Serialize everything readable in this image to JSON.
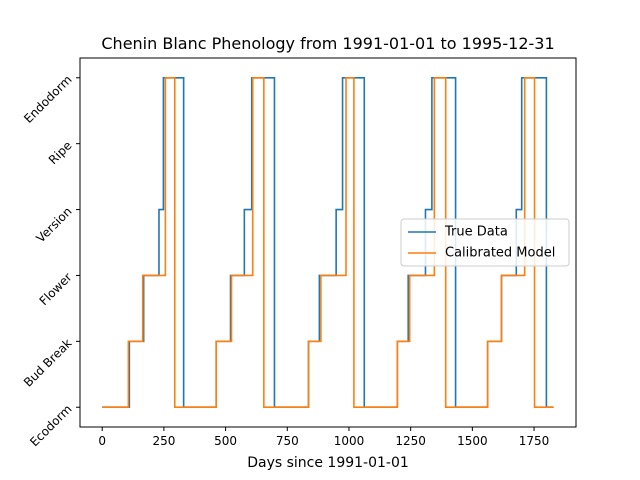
{
  "chart_data": {
    "type": "line",
    "title": "Chenin Blanc Phenology from 1991-01-01 to 1995-12-31",
    "xlabel": "Days since 1991-01-01",
    "ylabel": "",
    "xlim": [
      -90,
      1920
    ],
    "ylim": [
      -0.3,
      5.3
    ],
    "x_ticks": [
      0,
      250,
      500,
      750,
      1000,
      1250,
      1500,
      1750
    ],
    "y_ticks": [
      0,
      1,
      2,
      3,
      4,
      5
    ],
    "y_tick_labels": [
      "Ecodorm",
      "Bud Break",
      "Flower",
      "Version",
      "Ripe",
      "Endodorm"
    ],
    "legend_position": "center-right",
    "grid": false,
    "series": [
      {
        "name": "True Data",
        "color": "#1f77b4",
        "step_points": [
          [
            0,
            0
          ],
          [
            110,
            0
          ],
          [
            110,
            1
          ],
          [
            168,
            1
          ],
          [
            168,
            2
          ],
          [
            230,
            2
          ],
          [
            230,
            3
          ],
          [
            248,
            3
          ],
          [
            248,
            5
          ],
          [
            330,
            5
          ],
          [
            330,
            0
          ],
          [
            462,
            0
          ],
          [
            462,
            1
          ],
          [
            520,
            1
          ],
          [
            520,
            2
          ],
          [
            576,
            2
          ],
          [
            576,
            3
          ],
          [
            606,
            3
          ],
          [
            606,
            5
          ],
          [
            698,
            5
          ],
          [
            698,
            0
          ],
          [
            836,
            0
          ],
          [
            836,
            1
          ],
          [
            880,
            1
          ],
          [
            880,
            2
          ],
          [
            948,
            2
          ],
          [
            948,
            3
          ],
          [
            974,
            3
          ],
          [
            974,
            5
          ],
          [
            1062,
            5
          ],
          [
            1062,
            0
          ],
          [
            1196,
            0
          ],
          [
            1196,
            1
          ],
          [
            1240,
            1
          ],
          [
            1240,
            2
          ],
          [
            1310,
            2
          ],
          [
            1310,
            3
          ],
          [
            1336,
            3
          ],
          [
            1336,
            5
          ],
          [
            1432,
            5
          ],
          [
            1432,
            0
          ],
          [
            1562,
            0
          ],
          [
            1562,
            1
          ],
          [
            1618,
            1
          ],
          [
            1618,
            2
          ],
          [
            1678,
            2
          ],
          [
            1678,
            3
          ],
          [
            1700,
            3
          ],
          [
            1700,
            5
          ],
          [
            1800,
            5
          ],
          [
            1800,
            0
          ],
          [
            1826,
            0
          ]
        ]
      },
      {
        "name": "Calibrated Model",
        "color": "#ff7f0e",
        "step_points": [
          [
            0,
            0
          ],
          [
            106,
            0
          ],
          [
            106,
            1
          ],
          [
            164,
            1
          ],
          [
            164,
            2
          ],
          [
            256,
            2
          ],
          [
            256,
            5
          ],
          [
            294,
            5
          ],
          [
            294,
            0
          ],
          [
            462,
            0
          ],
          [
            462,
            1
          ],
          [
            524,
            1
          ],
          [
            524,
            2
          ],
          [
            610,
            2
          ],
          [
            610,
            5
          ],
          [
            655,
            5
          ],
          [
            655,
            0
          ],
          [
            836,
            0
          ],
          [
            836,
            1
          ],
          [
            886,
            1
          ],
          [
            886,
            2
          ],
          [
            988,
            2
          ],
          [
            988,
            5
          ],
          [
            1020,
            5
          ],
          [
            1020,
            0
          ],
          [
            1196,
            0
          ],
          [
            1196,
            1
          ],
          [
            1246,
            1
          ],
          [
            1246,
            2
          ],
          [
            1346,
            2
          ],
          [
            1346,
            5
          ],
          [
            1392,
            5
          ],
          [
            1392,
            0
          ],
          [
            1562,
            0
          ],
          [
            1562,
            1
          ],
          [
            1618,
            1
          ],
          [
            1618,
            2
          ],
          [
            1712,
            2
          ],
          [
            1712,
            5
          ],
          [
            1752,
            5
          ],
          [
            1752,
            0
          ],
          [
            1830,
            0
          ]
        ]
      }
    ]
  }
}
